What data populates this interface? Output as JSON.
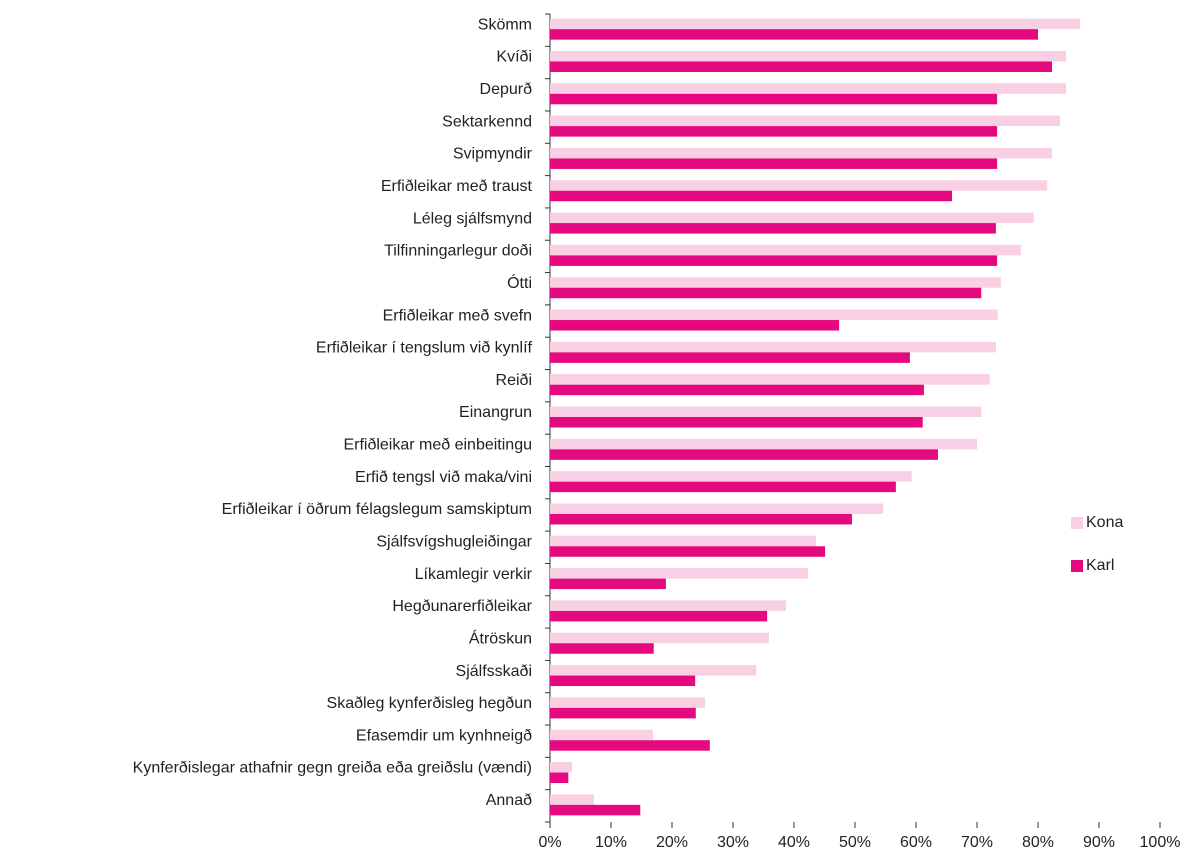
{
  "chart_data": {
    "type": "hbar",
    "categories": [
      "Skömm",
      "Kvíði",
      "Depurð",
      "Sektarkennd",
      "Svipmyndir",
      "Erfiðleikar með traust",
      "Léleg sjálfsmynd",
      "Tilfinningarlegur doði",
      "Ótti",
      "Erfiðleikar með svefn",
      "Erfiðleikar í tengslum við kynlíf",
      "Reiði",
      "Einangrun",
      "Erfiðleikar með einbeitingu",
      "Erfið tengsl við maka/vini",
      "Erfiðleikar í öðrum félagslegum samskiptum",
      "Sjálfsvígshugleiðingar",
      "Líkamlegir verkir",
      "Hegðunarerfiðleikar",
      "Átröskun",
      "Sjálfsskaði",
      "Skaðleg kynferðisleg hegðun",
      "Efasemdir um kynhneigð",
      "Kynferðislegar athafnir gegn greiða eða greiðslu (vændi)",
      "Annað"
    ],
    "series": [
      {
        "name": "Kona",
        "color": "#f9d0e3",
        "values": [
          86.9,
          84.6,
          84.6,
          83.6,
          82.3,
          81.5,
          79.3,
          77.2,
          73.9,
          73.4,
          73.1,
          72.1,
          70.7,
          70.0,
          59.3,
          54.6,
          43.6,
          42.3,
          38.7,
          35.9,
          33.8,
          25.4,
          16.9,
          3.6,
          7.2
        ]
      },
      {
        "name": "Karl",
        "color": "#e5097f",
        "values": [
          80.0,
          82.3,
          73.3,
          73.3,
          73.3,
          65.9,
          73.1,
          73.3,
          70.7,
          47.4,
          59.0,
          61.3,
          61.1,
          63.6,
          56.7,
          49.5,
          45.1,
          19.0,
          35.6,
          17.0,
          23.8,
          23.9,
          26.2,
          3.0,
          14.8
        ]
      }
    ],
    "xlim": [
      0,
      100
    ],
    "xticks": [
      {
        "value": 0,
        "label": "0%"
      },
      {
        "value": 10,
        "label": "10%"
      },
      {
        "value": 20,
        "label": "20%"
      },
      {
        "value": 30,
        "label": "30%"
      },
      {
        "value": 40,
        "label": "40%"
      },
      {
        "value": 50,
        "label": "50%"
      },
      {
        "value": 60,
        "label": "60%"
      },
      {
        "value": 70,
        "label": "70%"
      },
      {
        "value": 80,
        "label": "80%"
      },
      {
        "value": 90,
        "label": "90%"
      },
      {
        "value": 100,
        "label": "100%"
      }
    ],
    "legend": "right"
  }
}
